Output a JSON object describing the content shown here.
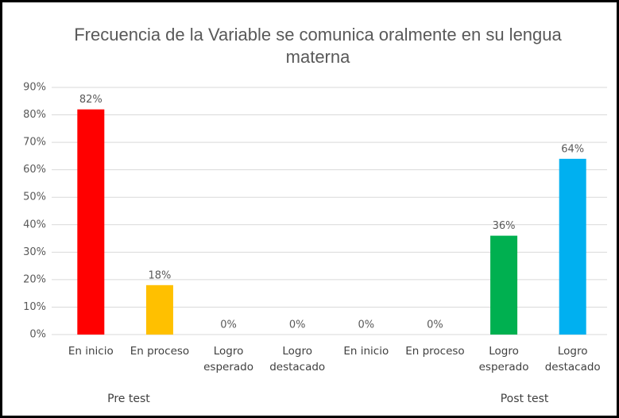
{
  "chart_data": {
    "type": "bar",
    "title": "Frecuencia de la Variable se comunica oralmente en su lengua materna",
    "categories": [
      "En inicio",
      "En proceso",
      "Logro esperado",
      "Logro destacado",
      "En inicio",
      "En proceso",
      "Logro esperado",
      "Logro destacado"
    ],
    "groups": [
      "Pre test",
      "Post test"
    ],
    "values": [
      82,
      18,
      0,
      0,
      0,
      0,
      36,
      64
    ],
    "value_labels": [
      "82%",
      "18%",
      "0%",
      "0%",
      "0%",
      "0%",
      "36%",
      "64%"
    ],
    "colors": [
      "#ff0000",
      "#ffc000",
      "#a5a5a5",
      "#a5a5a5",
      "#ff0000",
      "#ffc000",
      "#00b050",
      "#00b0f0"
    ],
    "ylim": [
      0,
      90
    ],
    "yticks": [
      {
        "value": 0,
        "label": "0%"
      },
      {
        "value": 10,
        "label": "10%"
      },
      {
        "value": 20,
        "label": "20%"
      },
      {
        "value": 30,
        "label": "30%"
      },
      {
        "value": 40,
        "label": "40%"
      },
      {
        "value": 50,
        "label": "50%"
      },
      {
        "value": 60,
        "label": "60%"
      },
      {
        "value": 70,
        "label": "70%"
      },
      {
        "value": 80,
        "label": "80%"
      },
      {
        "value": 90,
        "label": "90%"
      }
    ],
    "grid": true
  }
}
